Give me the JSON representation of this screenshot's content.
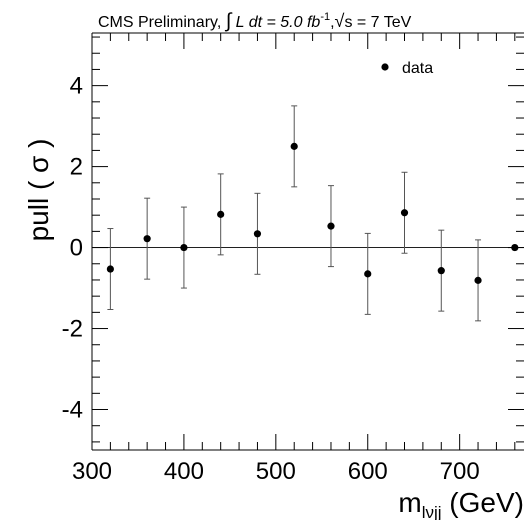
{
  "chart_data": {
    "type": "scatter",
    "title": "CMS Preliminary, ∫ L dt = 5.0 fb⁻¹, √s = 7 TeV",
    "title_parts": {
      "prefix": "CMS Preliminary, ",
      "integral": "∫",
      "lumi_var": " L dt = 5.0 fb",
      "lumi_exp": "-1",
      "sep": ",",
      "sqrt": "√",
      "energy": "s = 7 TeV"
    },
    "xlabel": "m",
    "xlabel_sub": "lνjj",
    "xlabel_unit": " (GeV)",
    "ylabel": "pull ( σ )",
    "xlim": [
      300,
      770
    ],
    "ylim": [
      -5,
      5.3
    ],
    "x_ticks": [
      300,
      400,
      500,
      600,
      700
    ],
    "x_tick_labels": [
      "300",
      "400",
      "500",
      "600",
      "700"
    ],
    "y_ticks": [
      -4,
      -2,
      0,
      2,
      4
    ],
    "y_tick_labels": [
      "-4",
      "-2",
      "0",
      "2",
      "4"
    ],
    "reference_line": 0,
    "legend": {
      "position": "top-right",
      "entries": [
        "data"
      ]
    },
    "series": [
      {
        "name": "data",
        "points": [
          {
            "x": 320,
            "y": -0.53,
            "err": 1.0
          },
          {
            "x": 360,
            "y": 0.22,
            "err": 1.0
          },
          {
            "x": 400,
            "y": 0.0,
            "err": 1.0
          },
          {
            "x": 440,
            "y": 0.82,
            "err": 1.0
          },
          {
            "x": 480,
            "y": 0.34,
            "err": 1.0
          },
          {
            "x": 520,
            "y": 2.5,
            "err": 1.0
          },
          {
            "x": 560,
            "y": 0.53,
            "err": 1.0
          },
          {
            "x": 600,
            "y": -0.65,
            "err": 1.0
          },
          {
            "x": 640,
            "y": 0.86,
            "err": 1.0
          },
          {
            "x": 680,
            "y": -0.57,
            "err": 1.0
          },
          {
            "x": 720,
            "y": -0.81,
            "err": 1.0
          },
          {
            "x": 760,
            "y": 0.0,
            "err": 0.0
          }
        ]
      }
    ]
  }
}
